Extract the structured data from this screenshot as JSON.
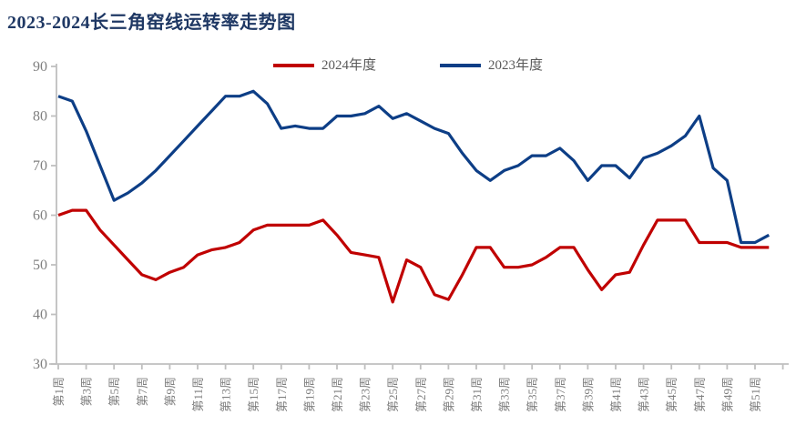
{
  "title": "2023-2024长三角窑线运转率走势图",
  "colors": {
    "title_text": "#1F3864",
    "axis_line": "#BFBFBF",
    "axis_tick_labels": "#7F7F7F",
    "legend_text": "#595959",
    "background": "#FFFFFF"
  },
  "legend": {
    "position": "top-center",
    "items": [
      "2024年度",
      "2023年度"
    ]
  },
  "chart_data": {
    "type": "line",
    "title": "2023-2024长三角窑线运转率走势图",
    "xlabel": "",
    "ylabel": "",
    "ylim": [
      30,
      90
    ],
    "yticks": [
      30,
      40,
      50,
      60,
      70,
      80,
      90
    ],
    "grid": false,
    "legend_position": "top-center",
    "x_unit": "周 (week 1-52)",
    "x": [
      1,
      2,
      3,
      4,
      5,
      6,
      7,
      8,
      9,
      10,
      11,
      12,
      13,
      14,
      15,
      16,
      17,
      18,
      19,
      20,
      21,
      22,
      23,
      24,
      25,
      26,
      27,
      28,
      29,
      30,
      31,
      32,
      33,
      34,
      35,
      36,
      37,
      38,
      39,
      40,
      41,
      42,
      43,
      44,
      45,
      46,
      47,
      48,
      49,
      50,
      51,
      52
    ],
    "x_tick_labels": [
      "第1周",
      "第3周",
      "第5周",
      "第7周",
      "第9周",
      "第11周",
      "第13周",
      "第15周",
      "第17周",
      "第19周",
      "第21周",
      "第23周",
      "第25周",
      "第27周",
      "第29周",
      "第31周",
      "第33周",
      "第35周",
      "第37周",
      "第39周",
      "第41周",
      "第43周",
      "第45周",
      "第47周",
      "第49周",
      "第51周"
    ],
    "series": [
      {
        "name": "2024年度",
        "color": "#C00000",
        "values": [
          60,
          61,
          61,
          57,
          54,
          51,
          48,
          47,
          48.5,
          49.5,
          52,
          53,
          53.5,
          54.5,
          57,
          58,
          58,
          58,
          58,
          59,
          56,
          52.5,
          52,
          51.5,
          42.5,
          51,
          49.5,
          44,
          43,
          48,
          53.5,
          53.5,
          49.5,
          49.5,
          50,
          51.5,
          53.5,
          53.5,
          49,
          45,
          48,
          48.5,
          54,
          59,
          59,
          59,
          54.5,
          54.5,
          54.5,
          53.5,
          53.5,
          53.5
        ]
      },
      {
        "name": "2023年度",
        "color": "#0D3E86",
        "values": [
          84,
          83,
          77,
          70,
          63,
          64.5,
          66.5,
          69,
          72,
          75,
          78,
          81,
          84,
          84,
          85,
          82.5,
          77.5,
          78,
          77.5,
          77.5,
          80,
          80,
          80.5,
          82,
          79.5,
          80.5,
          79,
          77.5,
          76.5,
          72.5,
          69,
          67,
          69,
          70,
          72,
          72,
          73.5,
          71,
          67,
          70,
          70,
          67.5,
          71.5,
          72.5,
          74,
          76,
          80,
          69.5,
          67,
          54.5,
          54.5,
          56
        ]
      }
    ]
  }
}
